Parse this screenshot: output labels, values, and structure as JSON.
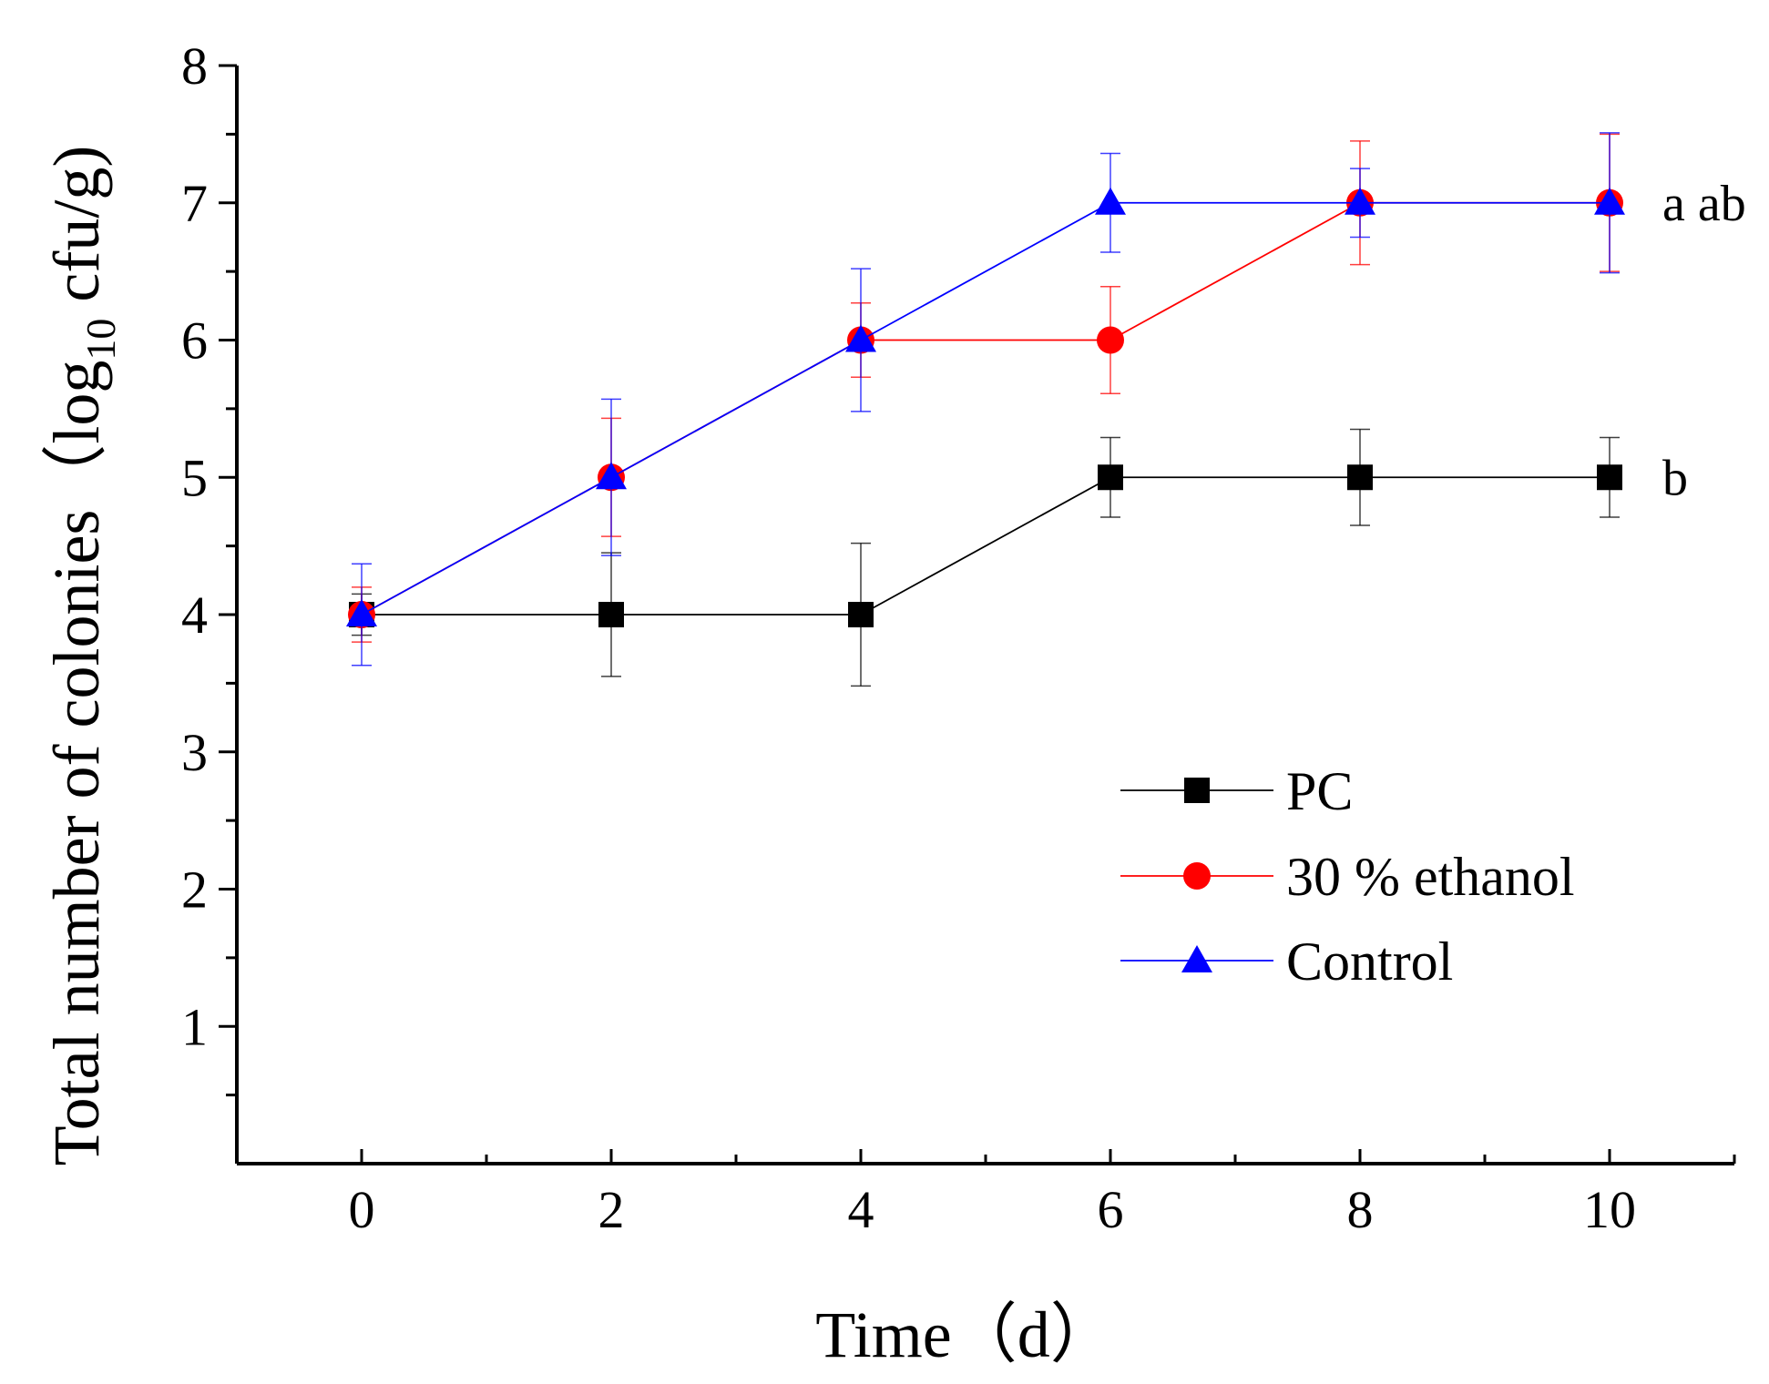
{
  "chart_data": {
    "type": "line",
    "title": "",
    "xlabel": "Time（d）",
    "ylabel": {
      "prefix": "Total number of colonies（log",
      "subscript": "10",
      "suffix": " cfu/g)"
    },
    "xlim": [
      -1,
      11
    ],
    "ylim": [
      0,
      8
    ],
    "x_ticks": [
      "0",
      "2",
      "4",
      "6",
      "8",
      "10"
    ],
    "y_ticks": [
      "1",
      "2",
      "3",
      "4",
      "5",
      "6",
      "7",
      "8"
    ],
    "x": [
      0,
      2,
      4,
      6,
      8,
      10
    ],
    "series": [
      {
        "name": "PC",
        "color": "#000000",
        "marker": "square",
        "values": [
          4,
          4,
          4,
          5,
          5,
          5
        ],
        "errors": [
          0.15,
          0.45,
          0.52,
          0.29,
          0.35,
          0.29
        ]
      },
      {
        "name": "30 % ethanol",
        "color": "#ff0000",
        "marker": "circle",
        "values": [
          4,
          5,
          6,
          6,
          7,
          7
        ],
        "errors": [
          0.2,
          0.43,
          0.27,
          0.39,
          0.45,
          0.5
        ]
      },
      {
        "name": "Control",
        "color": "#0000ff",
        "marker": "triangle",
        "values": [
          4,
          5,
          6,
          7,
          7,
          7
        ],
        "errors": [
          0.37,
          0.57,
          0.52,
          0.36,
          0.25,
          0.51
        ]
      }
    ],
    "legend_position": "lower-right",
    "annotations": [
      {
        "text": "a ab",
        "x": 10,
        "y": 7
      },
      {
        "text": "b",
        "x": 10,
        "y": 5
      }
    ]
  }
}
